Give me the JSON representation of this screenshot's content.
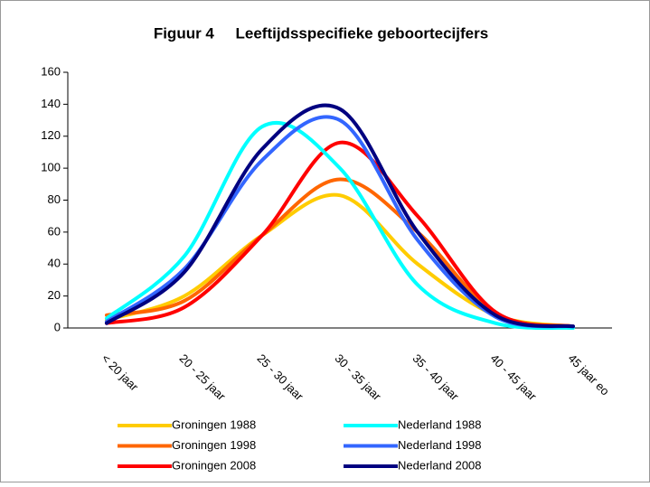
{
  "chart_data": {
    "type": "line",
    "title": "Figuur 4     Leeftijdsspecifieke geboortecijfers",
    "categories": [
      "< 20 jaar",
      "20 - 25 jaar",
      "25 - 30 jaar",
      "30 - 35 jaar",
      "35 - 40 jaar",
      "40 - 45 jaar",
      "45 jaar eo"
    ],
    "series": [
      {
        "name": "Groningen 1988",
        "color": "#ffcc00",
        "values": [
          5,
          20,
          58,
          83,
          40,
          8,
          1
        ]
      },
      {
        "name": "Groningen 1998",
        "color": "#ff6600",
        "values": [
          8,
          17,
          58,
          93,
          60,
          9,
          1
        ]
      },
      {
        "name": "Groningen 2008",
        "color": "#ff0000",
        "values": [
          3,
          13,
          58,
          116,
          70,
          10,
          1
        ]
      },
      {
        "name": "Nederland 1988",
        "color": "#00ffff",
        "values": [
          6,
          45,
          126,
          100,
          27,
          3,
          0
        ]
      },
      {
        "name": "Nederland 1998",
        "color": "#3366ff",
        "values": [
          4,
          37,
          105,
          130,
          55,
          7,
          1
        ]
      },
      {
        "name": "Nederland 2008",
        "color": "#000080",
        "values": [
          3,
          35,
          112,
          137,
          60,
          8,
          1
        ]
      }
    ],
    "ylim": [
      0,
      160
    ],
    "yticks": [
      0,
      20,
      40,
      60,
      80,
      100,
      120,
      140,
      160
    ]
  }
}
